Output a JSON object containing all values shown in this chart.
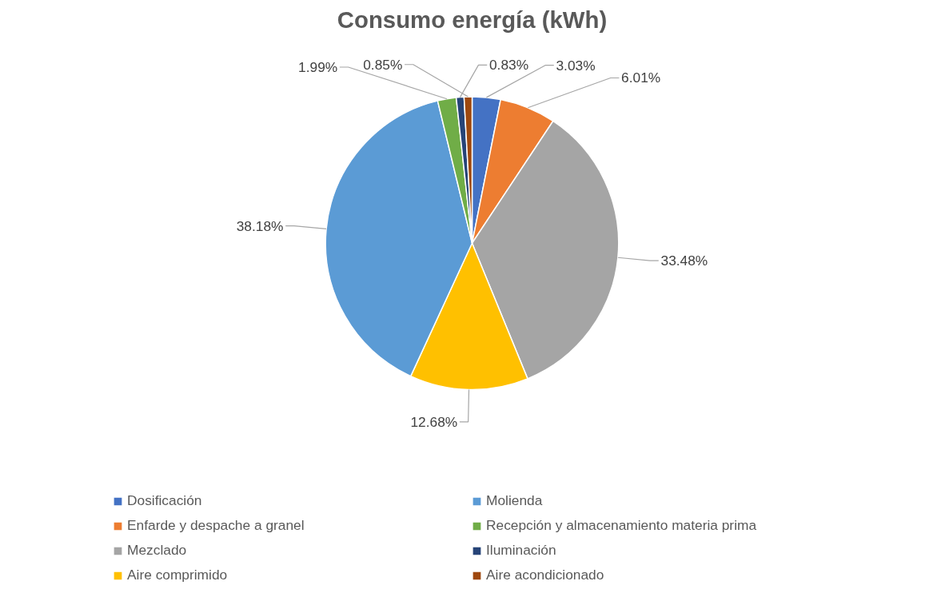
{
  "chart_data": {
    "type": "pie",
    "title": "Consumo energía (kWh)",
    "categories": [
      "Dosificación",
      "Enfarde y despache a granel",
      "Mezclado",
      "Aire comprimido",
      "Molienda",
      "Recepción y almacenamiento materia prima",
      "Iluminación",
      "Aire acondicionado"
    ],
    "values": [
      3.03,
      6.01,
      33.48,
      12.68,
      38.18,
      1.99,
      0.83,
      0.85
    ],
    "colors": [
      "#4472c4",
      "#ed7d31",
      "#a5a5a5",
      "#ffc000",
      "#5b9bd5",
      "#70ad47",
      "#264478",
      "#9e480e"
    ],
    "value_labels": [
      "3.03%",
      "6.01%",
      "33.48%",
      "12.68%",
      "38.18%",
      "1.99%",
      "0.83%",
      "0.85%"
    ],
    "legend": "bottom"
  }
}
